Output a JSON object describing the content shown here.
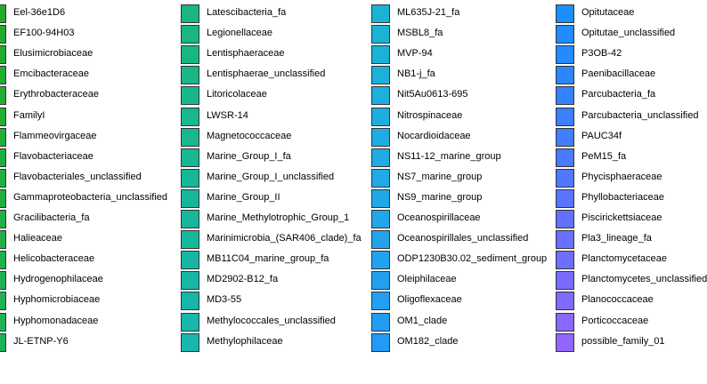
{
  "chart_data": {
    "type": "legend",
    "columns": [
      {
        "items": [
          {
            "label": "Eel-36e1D6",
            "color": "#22ab2c"
          },
          {
            "label": "EF100-94H03",
            "color": "#22ab2e"
          },
          {
            "label": "Elusimicrobiaceae",
            "color": "#22ac30"
          },
          {
            "label": "Emcibacteraceae",
            "color": "#22ac32"
          },
          {
            "label": "Erythrobacteraceae",
            "color": "#22ad35"
          },
          {
            "label": "FamilyI",
            "color": "#22ad37"
          },
          {
            "label": "Flammeovirgaceae",
            "color": "#21ae3a"
          },
          {
            "label": "Flavobacteriaceae",
            "color": "#21ae3d"
          },
          {
            "label": "Flavobacteriales_unclassified",
            "color": "#21af40"
          },
          {
            "label": "Gammaproteobacteria_unclassified",
            "color": "#21af43"
          },
          {
            "label": "Gracilibacteria_fa",
            "color": "#21b046"
          },
          {
            "label": "Halieaceae",
            "color": "#20b049"
          },
          {
            "label": "Helicobacteraceae",
            "color": "#20b04c"
          },
          {
            "label": "Hydrogenophilaceae",
            "color": "#1fb150"
          },
          {
            "label": "Hyphomicrobiaceae",
            "color": "#1fb153"
          },
          {
            "label": "Hyphomonadaceae",
            "color": "#1eb157"
          },
          {
            "label": "JL-ETNP-Y6",
            "color": "#1db25a"
          }
        ]
      },
      {
        "items": [
          {
            "label": "Latescibacteria_fa",
            "color": "#1bb67e"
          },
          {
            "label": "Legionellaceae",
            "color": "#1ab681"
          },
          {
            "label": "Lentisphaeraceae",
            "color": "#19b684"
          },
          {
            "label": "Lentisphaerae_unclassified",
            "color": "#19b687"
          },
          {
            "label": "Litoricolaceae",
            "color": "#18b78a"
          },
          {
            "label": "LWSR-14",
            "color": "#18b78d"
          },
          {
            "label": "Magnetococcaceae",
            "color": "#17b790"
          },
          {
            "label": "Marine_Group_I_fa",
            "color": "#17b793"
          },
          {
            "label": "Marine_Group_I_unclassified",
            "color": "#16b796"
          },
          {
            "label": "Marine_Group_II",
            "color": "#16b799"
          },
          {
            "label": "Marine_Methylotrophic_Group_1",
            "color": "#16b79c"
          },
          {
            "label": "Marinimicrobia_(SAR406_clade)_fa",
            "color": "#16b79f"
          },
          {
            "label": "MB11C04_marine_group_fa",
            "color": "#16b7a2"
          },
          {
            "label": "MD2902-B12_fa",
            "color": "#16b7a5"
          },
          {
            "label": "MD3-55",
            "color": "#16b7a8"
          },
          {
            "label": "Methylococcales_unclassified",
            "color": "#17b7ab"
          },
          {
            "label": "Methylophilaceae",
            "color": "#18b7ae"
          }
        ]
      },
      {
        "items": [
          {
            "label": "ML635J-21_fa",
            "color": "#1cb3d3"
          },
          {
            "label": "MSBL8_fa",
            "color": "#1cb2d5"
          },
          {
            "label": "MVP-94",
            "color": "#1cb1d8"
          },
          {
            "label": "NB1-j_fa",
            "color": "#1db0da"
          },
          {
            "label": "Nit5Au0613-695",
            "color": "#1dafdd"
          },
          {
            "label": "Nitrospinaceae",
            "color": "#1eaddf"
          },
          {
            "label": "Nocardioidaceae",
            "color": "#1face2"
          },
          {
            "label": "NS11-12_marine_group",
            "color": "#1faae4"
          },
          {
            "label": "NS7_marine_group",
            "color": "#20a9e6"
          },
          {
            "label": "NS9_marine_group",
            "color": "#20a7e8"
          },
          {
            "label": "Oceanospirillaceae",
            "color": "#21a6ea"
          },
          {
            "label": "Oceanospirillales_unclassified",
            "color": "#21a4ec"
          },
          {
            "label": "ODP1230B30.02_sediment_group",
            "color": "#21a2ee"
          },
          {
            "label": "Oleiphilaceae",
            "color": "#22a0f0"
          },
          {
            "label": "Oligoflexaceae",
            "color": "#229ef2"
          },
          {
            "label": "OM1_clade",
            "color": "#239cf4"
          },
          {
            "label": "OM182_clade",
            "color": "#239af6"
          }
        ]
      },
      {
        "items": [
          {
            "label": "Opitutaceae",
            "color": "#1a8fff"
          },
          {
            "label": "Opitutae_unclassified",
            "color": "#1f8cff"
          },
          {
            "label": "P3OB-42",
            "color": "#2589ff"
          },
          {
            "label": "Paenibacillaceae",
            "color": "#2c86ff"
          },
          {
            "label": "Parcubacteria_fa",
            "color": "#3383ff"
          },
          {
            "label": "Parcubacteria_unclassified",
            "color": "#3a80ff"
          },
          {
            "label": "PAUC34f",
            "color": "#417dff"
          },
          {
            "label": "PeM15_fa",
            "color": "#497aff"
          },
          {
            "label": "Phycisphaeraceae",
            "color": "#5177ff"
          },
          {
            "label": "Phyllobacteriaceae",
            "color": "#5975ff"
          },
          {
            "label": "Piscirickettsiaceae",
            "color": "#6072ff"
          },
          {
            "label": "Pla3_lineage_fa",
            "color": "#6870ff"
          },
          {
            "label": "Planctomycetaceae",
            "color": "#706eff"
          },
          {
            "label": "Planctomycetes_unclassified",
            "color": "#786cff"
          },
          {
            "label": "Planococcaceae",
            "color": "#806aff"
          },
          {
            "label": "Porticoccaceae",
            "color": "#8868fe"
          },
          {
            "label": "possible_family_01",
            "color": "#9066fc"
          }
        ]
      }
    ]
  }
}
